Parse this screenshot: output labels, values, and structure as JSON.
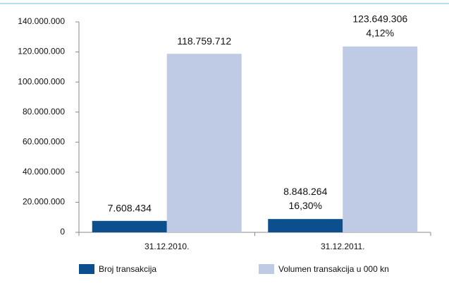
{
  "chart_data": {
    "type": "bar",
    "categories": [
      "31.12.2010.",
      "31.12.2011."
    ],
    "series": [
      {
        "name": "Broj transakcija",
        "color": "#0b4f8e",
        "values": [
          7608434,
          8848264
        ],
        "value_labels": [
          "7.608.434",
          "8.848.264"
        ],
        "change_labels": [
          null,
          "16,30%"
        ]
      },
      {
        "name": "Volumen transakcija u 000 kn",
        "color": "#bfcbe4",
        "values": [
          118759712,
          123649306
        ],
        "value_labels": [
          "118.759.712",
          "123.649.306"
        ],
        "change_labels": [
          null,
          "4,12%"
        ]
      }
    ],
    "ylim": [
      0,
      140000000
    ],
    "yticks": [
      0,
      {
        "value": 20000000,
        "label": "20.000.000"
      },
      {
        "value": 40000000,
        "label": "40.000.000"
      },
      {
        "value": 60000000,
        "label": "60.000.000"
      },
      {
        "value": 80000000,
        "label": "80.000.000"
      },
      {
        "value": 100000000,
        "label": "100.000.000"
      },
      {
        "value": 120000000,
        "label": "120.000.000"
      },
      {
        "value": 140000000,
        "label": "140.000.000"
      }
    ],
    "legend": "bottom"
  }
}
